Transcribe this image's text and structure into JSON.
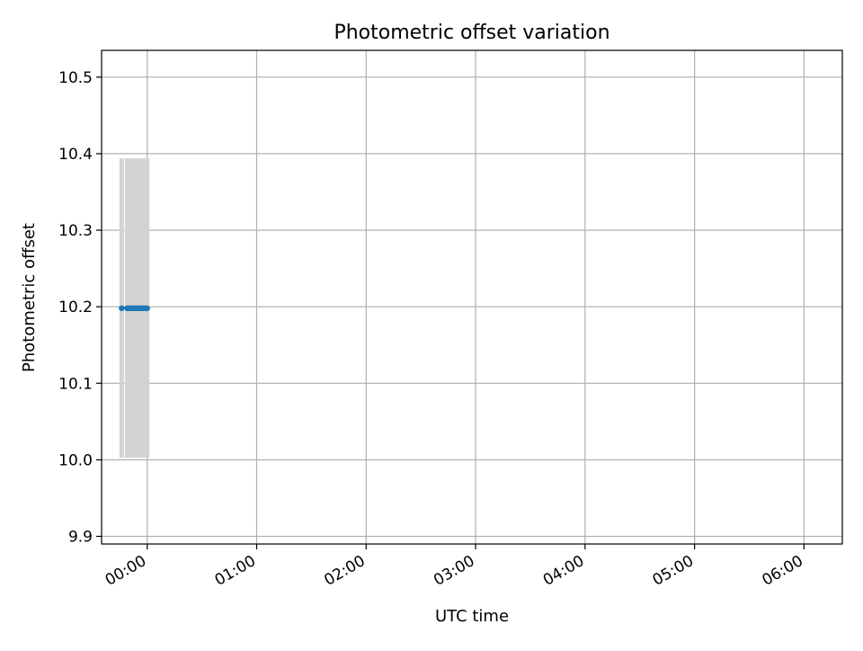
{
  "chart_data": {
    "type": "scatter",
    "title": "Photometric offset variation",
    "xlabel": "UTC time",
    "ylabel": "Photometric offset",
    "xlim": [
      "23:35",
      "06:21"
    ],
    "ylim": [
      9.89,
      10.535
    ],
    "grid": true,
    "x_ticks": [
      "00:00",
      "01:00",
      "02:00",
      "03:00",
      "04:00",
      "05:00",
      "06:00"
    ],
    "y_ticks": [
      9.9,
      10.0,
      10.1,
      10.2,
      10.3,
      10.4,
      10.5
    ],
    "y_tick_labels": [
      "9.9",
      "10.0",
      "10.1",
      "10.2",
      "10.3",
      "10.4",
      "10.5"
    ],
    "colors": {
      "points": "#1f77b4",
      "errorbars": "#d3d3d3",
      "grid": "#b0b0b0"
    },
    "points": [
      {
        "t": "23:49",
        "y": 10.198,
        "lo": 10.003,
        "hi": 10.394
      },
      {
        "t": "23:50",
        "y": 10.198,
        "lo": 10.003,
        "hi": 10.394
      },
      {
        "t": "23:51",
        "y": 10.198,
        "lo": 10.003,
        "hi": 10.394
      },
      {
        "t": "23:52",
        "y": 10.198,
        "lo": 10.003,
        "hi": 10.394
      },
      {
        "t": "23:53",
        "y": 10.198,
        "lo": 10.003,
        "hi": 10.394
      },
      {
        "t": "23:54",
        "y": 10.198,
        "lo": 10.003,
        "hi": 10.394
      },
      {
        "t": "23:55",
        "y": 10.198,
        "lo": 10.003,
        "hi": 10.394
      },
      {
        "t": "23:56",
        "y": 10.198,
        "lo": 10.003,
        "hi": 10.394
      },
      {
        "t": "23:57",
        "y": 10.198,
        "lo": 10.003,
        "hi": 10.394
      },
      {
        "t": "23:58",
        "y": 10.198,
        "lo": 10.003,
        "hi": 10.394
      },
      {
        "t": "23:59",
        "y": 10.198,
        "lo": 10.003,
        "hi": 10.394
      },
      {
        "t": "00:00",
        "y": 10.198,
        "lo": 10.003,
        "hi": 10.394
      },
      {
        "t": "23:46",
        "y": 10.198,
        "lo": 10.003,
        "hi": 10.394
      }
    ]
  }
}
